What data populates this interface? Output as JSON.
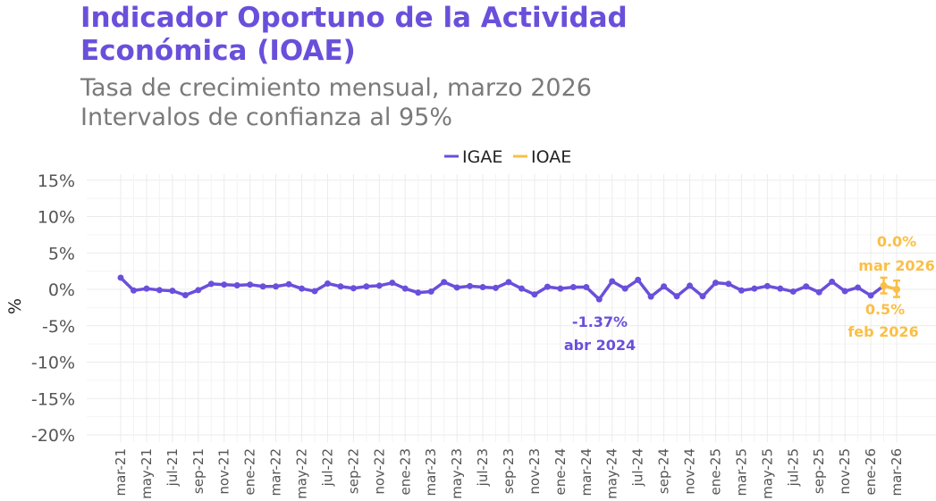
{
  "header": {
    "title_line1": "Indicador Oportuno de la Actividad",
    "title_line2": "Económica (IOAE)",
    "subtitle_line1": "Tasa de crecimiento mensual, marzo 2026",
    "subtitle_line2": "Intervalos de confianza al 95%"
  },
  "chart_data": {
    "type": "line",
    "title": "Indicador Oportuno de la Actividad Económica (IOAE)",
    "subtitle": "Tasa de crecimiento mensual, marzo 2026 / Intervalos de confianza al 95%",
    "xlabel": "",
    "ylabel": "%",
    "ylim": [
      -20,
      15
    ],
    "yticks": [
      "-20%",
      "-15%",
      "-10%",
      "-5%",
      "0%",
      "5%",
      "10%",
      "15%"
    ],
    "ytick_values": [
      -20,
      -15,
      -10,
      -5,
      0,
      5,
      10,
      15
    ],
    "grid": true,
    "legend_position": "top",
    "colors": {
      "IGAE": "#6a4fdb",
      "IOAE": "#fbbf45"
    },
    "xticks": [
      "mar-21",
      "may-21",
      "jul-21",
      "sep-21",
      "nov-21",
      "ene-22",
      "mar-22",
      "may-22",
      "jul-22",
      "sep-22",
      "nov-22",
      "ene-23",
      "mar-23",
      "may-23",
      "jul-23",
      "sep-23",
      "nov-23",
      "ene-24",
      "mar-24",
      "may-24",
      "jul-24",
      "sep-24",
      "nov-24",
      "ene-25",
      "mar-25",
      "may-25",
      "jul-25",
      "sep-25",
      "nov-25",
      "ene-26",
      "mar-26"
    ],
    "series": [
      {
        "name": "IGAE",
        "start": "mar-21",
        "values": [
          1.6,
          -0.15,
          0.1,
          -0.1,
          -0.2,
          -0.8,
          -0.1,
          0.75,
          0.65,
          0.55,
          0.65,
          0.4,
          0.4,
          0.7,
          0.1,
          -0.25,
          0.8,
          0.4,
          0.15,
          0.4,
          0.5,
          0.9,
          0.1,
          -0.45,
          -0.3,
          1.0,
          0.25,
          0.45,
          0.3,
          0.2,
          1.0,
          0.1,
          -0.7,
          0.35,
          0.1,
          0.3,
          0.3,
          -1.37,
          1.1,
          0.1,
          1.3,
          -1.0,
          0.4,
          -0.95,
          0.5,
          -0.95,
          0.9,
          0.75,
          -0.15,
          0.1,
          0.45,
          0.1,
          -0.3,
          0.4,
          -0.4,
          1.05,
          -0.25,
          0.25,
          -0.85
        ]
      },
      {
        "name": "IOAE",
        "points": [
          {
            "x": "feb-26",
            "value": 0.5,
            "lower": -0.55,
            "upper": 1.6
          },
          {
            "x": "mar-26",
            "value": 0.0,
            "lower": -1.05,
            "upper": 1.2
          }
        ]
      }
    ],
    "annotations": [
      {
        "value": "-1.37%",
        "date": "abr 2024",
        "series": "IGAE"
      },
      {
        "value": "0.5%",
        "date": "feb 2026",
        "series": "IOAE"
      },
      {
        "value": "0.0%",
        "date": "mar 2026",
        "series": "IOAE"
      }
    ]
  }
}
